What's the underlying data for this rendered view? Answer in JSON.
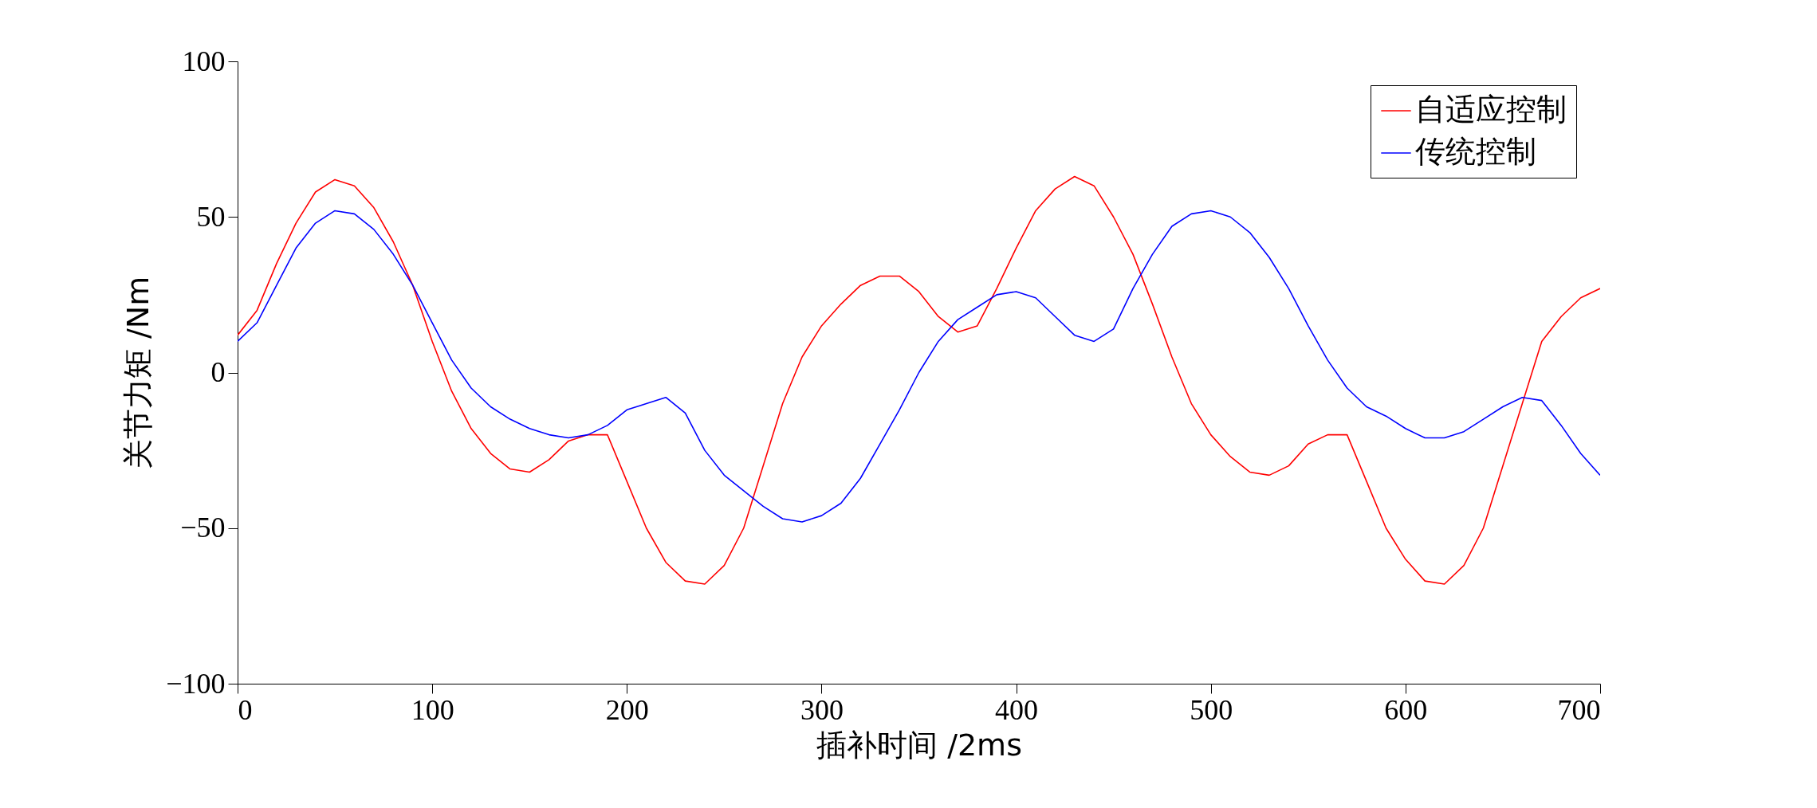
{
  "chart_data": {
    "type": "line",
    "xlabel": "插补时间   /2ms",
    "ylabel": "关节力矩  /Nm",
    "x": [
      0,
      10,
      20,
      30,
      40,
      50,
      60,
      70,
      80,
      90,
      100,
      110,
      120,
      130,
      140,
      150,
      160,
      170,
      180,
      190,
      200,
      210,
      220,
      230,
      240,
      250,
      260,
      270,
      280,
      290,
      300,
      310,
      320,
      330,
      340,
      350,
      360,
      370,
      380,
      390,
      400,
      410,
      420,
      430,
      440,
      450,
      460,
      470,
      480,
      490,
      500,
      510,
      520,
      530,
      540,
      550,
      560,
      570,
      580,
      590,
      600,
      610,
      620,
      630,
      640,
      650,
      660,
      670,
      680,
      690,
      700
    ],
    "series": [
      {
        "name": "自适应控制",
        "color": "#ff0000",
        "values": [
          12,
          20,
          35,
          48,
          58,
          62,
          60,
          53,
          42,
          28,
          10,
          -6,
          -18,
          -26,
          -31,
          -32,
          -28,
          -22,
          -20,
          -20,
          -35,
          -50,
          -61,
          -67,
          -68,
          -62,
          -50,
          -30,
          -10,
          5,
          15,
          22,
          28,
          31,
          31,
          26,
          18,
          13,
          15,
          27,
          40,
          52,
          59,
          63,
          60,
          50,
          38,
          22,
          5,
          -10,
          -20,
          -27,
          -32,
          -33,
          -30,
          -23,
          -20,
          -20,
          -35,
          -50,
          -60,
          -67,
          -68,
          -62,
          -50,
          -30,
          -10,
          10,
          18,
          24,
          27
        ]
      },
      {
        "name": "传统控制",
        "color": "#0000ff",
        "values": [
          10,
          16,
          28,
          40,
          48,
          52,
          51,
          46,
          38,
          28,
          16,
          4,
          -5,
          -11,
          -15,
          -18,
          -20,
          -21,
          -20,
          -17,
          -12,
          -10,
          -8,
          -13,
          -25,
          -33,
          -38,
          -43,
          -47,
          -48,
          -46,
          -42,
          -34,
          -23,
          -12,
          0,
          10,
          17,
          21,
          25,
          26,
          24,
          18,
          12,
          10,
          14,
          27,
          38,
          47,
          51,
          52,
          50,
          45,
          37,
          27,
          15,
          4,
          -5,
          -11,
          -14,
          -18,
          -21,
          -21,
          -19,
          -15,
          -11,
          -8,
          -9,
          -17,
          -26,
          -33
        ]
      }
    ],
    "xlim": [
      0,
      700
    ],
    "xticks": [
      0,
      100,
      200,
      300,
      400,
      500,
      600,
      700
    ],
    "ylim": [
      -100,
      100
    ],
    "yticks": [
      -100,
      -50,
      0,
      50,
      100
    ],
    "grid": false,
    "legend": "top right",
    "marker": "none",
    "line_style": "solid"
  }
}
